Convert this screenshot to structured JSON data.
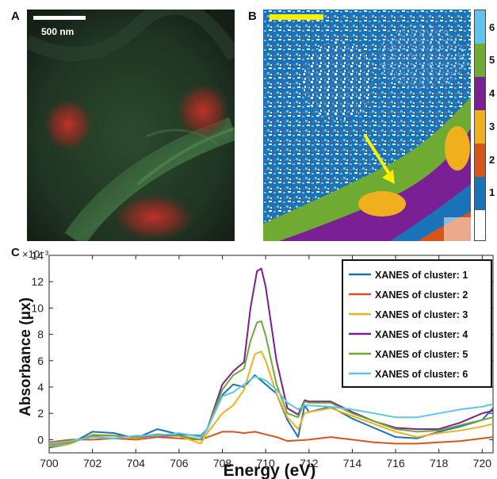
{
  "panels": {
    "a": {
      "letter": "A",
      "scalebar_label": "500 nm"
    },
    "b": {
      "letter": "B"
    },
    "c": {
      "letter": "C"
    }
  },
  "colorbar": {
    "labels": [
      "6",
      "5",
      "4",
      "3",
      "2",
      "1"
    ],
    "colors": [
      "#5ec4ee",
      "#6faa33",
      "#7a1f94",
      "#f0b01e",
      "#d9541a",
      "#1a72b9",
      "#ffffff"
    ]
  },
  "chart_data": {
    "type": "line",
    "xlabel": "Energy (eV)",
    "ylabel": "Absorbance (μx)",
    "y_exponent": "×10⁻³",
    "xlim": [
      700,
      720.5
    ],
    "ylim": [
      -1,
      14
    ],
    "xticks": [
      "700",
      "702",
      "704",
      "706",
      "708",
      "710",
      "712",
      "714",
      "716",
      "718",
      "720"
    ],
    "yticks": [
      "0",
      "2",
      "4",
      "6",
      "8",
      "10",
      "12",
      "14"
    ],
    "series": [
      {
        "name": "XANES of cluster: 1",
        "color": "#1a72b9",
        "points": [
          [
            700,
            -0.6
          ],
          [
            701,
            -0.3
          ],
          [
            702,
            0.6
          ],
          [
            703,
            0.5
          ],
          [
            704,
            0.1
          ],
          [
            705,
            0.8
          ],
          [
            706,
            0.4
          ],
          [
            707,
            0.3
          ],
          [
            707.3,
            0.8
          ],
          [
            708,
            3.4
          ],
          [
            708.5,
            4.2
          ],
          [
            709,
            4.0
          ],
          [
            709.5,
            4.9
          ],
          [
            710,
            4.2
          ],
          [
            710.5,
            3.5
          ],
          [
            711,
            1.5
          ],
          [
            711.5,
            0.2
          ],
          [
            711.8,
            2.6
          ],
          [
            712,
            2.1
          ],
          [
            713,
            2.5
          ],
          [
            714,
            1.6
          ],
          [
            715,
            0.9
          ],
          [
            716,
            0.2
          ],
          [
            717,
            0.1
          ],
          [
            718,
            0.6
          ],
          [
            719,
            1.0
          ],
          [
            720,
            1.5
          ],
          [
            720.5,
            2.4
          ]
        ]
      },
      {
        "name": "XANES of cluster: 2",
        "color": "#d9541a",
        "points": [
          [
            700,
            -0.2
          ],
          [
            701,
            0.0
          ],
          [
            702,
            0.0
          ],
          [
            703,
            0.1
          ],
          [
            704,
            0.0
          ],
          [
            705,
            0.2
          ],
          [
            706,
            0.1
          ],
          [
            707,
            0.0
          ],
          [
            707.5,
            0.3
          ],
          [
            708,
            0.6
          ],
          [
            708.5,
            0.6
          ],
          [
            709,
            0.5
          ],
          [
            709.5,
            0.6
          ],
          [
            710,
            0.4
          ],
          [
            710.5,
            0.2
          ],
          [
            711,
            -0.1
          ],
          [
            712,
            0.0
          ],
          [
            713,
            0.2
          ],
          [
            714,
            0.0
          ],
          [
            715,
            -0.2
          ],
          [
            716,
            -0.3
          ],
          [
            717,
            -0.3
          ],
          [
            718,
            -0.2
          ],
          [
            719,
            -0.1
          ],
          [
            720,
            0.1
          ],
          [
            720.5,
            0.2
          ]
        ]
      },
      {
        "name": "XANES of cluster: 3",
        "color": "#f0b01e",
        "points": [
          [
            700,
            -0.5
          ],
          [
            701,
            -0.3
          ],
          [
            702,
            0.4
          ],
          [
            703,
            0.3
          ],
          [
            704,
            0.1
          ],
          [
            705,
            0.4
          ],
          [
            706,
            0.3
          ],
          [
            707,
            -0.3
          ],
          [
            707.3,
            0.5
          ],
          [
            708,
            2.0
          ],
          [
            708.5,
            2.6
          ],
          [
            709,
            3.8
          ],
          [
            709.5,
            6.5
          ],
          [
            709.8,
            6.7
          ],
          [
            710,
            6.0
          ],
          [
            710.5,
            3.5
          ],
          [
            711,
            1.7
          ],
          [
            711.5,
            0.8
          ],
          [
            711.8,
            2.0
          ],
          [
            712,
            2.1
          ],
          [
            713,
            2.4
          ],
          [
            714,
            1.8
          ],
          [
            715,
            1.2
          ],
          [
            716,
            0.6
          ],
          [
            717,
            0.2
          ],
          [
            718,
            0.5
          ],
          [
            719,
            0.7
          ],
          [
            720,
            1.0
          ],
          [
            720.5,
            1.2
          ]
        ]
      },
      {
        "name": "XANES of cluster: 4",
        "color": "#7a1f94",
        "points": [
          [
            700,
            -0.4
          ],
          [
            701,
            -0.2
          ],
          [
            702,
            0.3
          ],
          [
            703,
            0.3
          ],
          [
            704,
            0.2
          ],
          [
            705,
            0.3
          ],
          [
            706,
            0.3
          ],
          [
            707,
            0.0
          ],
          [
            707.3,
            0.8
          ],
          [
            708,
            4.2
          ],
          [
            708.5,
            5.2
          ],
          [
            709,
            5.9
          ],
          [
            709.3,
            10.0
          ],
          [
            709.6,
            12.8
          ],
          [
            709.8,
            13.0
          ],
          [
            710,
            11.6
          ],
          [
            710.5,
            6.0
          ],
          [
            711,
            2.4
          ],
          [
            711.5,
            1.9
          ],
          [
            711.8,
            3.0
          ],
          [
            712,
            2.9
          ],
          [
            713,
            2.9
          ],
          [
            714,
            2.1
          ],
          [
            715,
            1.4
          ],
          [
            716,
            0.9
          ],
          [
            717,
            0.8
          ],
          [
            718,
            0.8
          ],
          [
            719,
            1.3
          ],
          [
            720,
            2.0
          ],
          [
            720.5,
            2.2
          ]
        ]
      },
      {
        "name": "XANES of cluster: 5",
        "color": "#6faa33",
        "points": [
          [
            700,
            -0.4
          ],
          [
            701,
            -0.2
          ],
          [
            702,
            0.3
          ],
          [
            703,
            0.3
          ],
          [
            704,
            0.2
          ],
          [
            705,
            0.4
          ],
          [
            706,
            0.3
          ],
          [
            707,
            0.0
          ],
          [
            707.3,
            0.8
          ],
          [
            708,
            3.8
          ],
          [
            708.5,
            4.9
          ],
          [
            709,
            5.4
          ],
          [
            709.3,
            7.5
          ],
          [
            709.6,
            8.9
          ],
          [
            709.8,
            9.0
          ],
          [
            710,
            7.9
          ],
          [
            710.5,
            4.2
          ],
          [
            711,
            2.0
          ],
          [
            711.5,
            1.7
          ],
          [
            711.8,
            2.9
          ],
          [
            712,
            2.8
          ],
          [
            713,
            2.8
          ],
          [
            714,
            2.0
          ],
          [
            715,
            1.4
          ],
          [
            716,
            0.8
          ],
          [
            717,
            0.6
          ],
          [
            718,
            0.7
          ],
          [
            719,
            1.1
          ],
          [
            720,
            1.5
          ],
          [
            720.5,
            1.7
          ]
        ]
      },
      {
        "name": "XANES of cluster: 6",
        "color": "#5ec4ee",
        "points": [
          [
            700,
            -0.3
          ],
          [
            701,
            -0.1
          ],
          [
            702,
            0.2
          ],
          [
            703,
            0.1
          ],
          [
            704,
            0.3
          ],
          [
            705,
            0.3
          ],
          [
            706,
            0.5
          ],
          [
            707,
            0.2
          ],
          [
            707.3,
            0.8
          ],
          [
            708,
            3.3
          ],
          [
            708.5,
            3.6
          ],
          [
            709,
            4.2
          ],
          [
            709.5,
            4.8
          ],
          [
            710,
            4.5
          ],
          [
            710.5,
            3.8
          ],
          [
            711,
            2.8
          ],
          [
            711.5,
            2.3
          ],
          [
            711.8,
            2.6
          ],
          [
            712,
            2.6
          ],
          [
            713,
            2.5
          ],
          [
            714,
            2.3
          ],
          [
            715,
            2.0
          ],
          [
            716,
            1.7
          ],
          [
            717,
            1.7
          ],
          [
            718,
            2.0
          ],
          [
            719,
            2.3
          ],
          [
            720,
            2.5
          ],
          [
            720.5,
            2.7
          ]
        ]
      }
    ]
  }
}
